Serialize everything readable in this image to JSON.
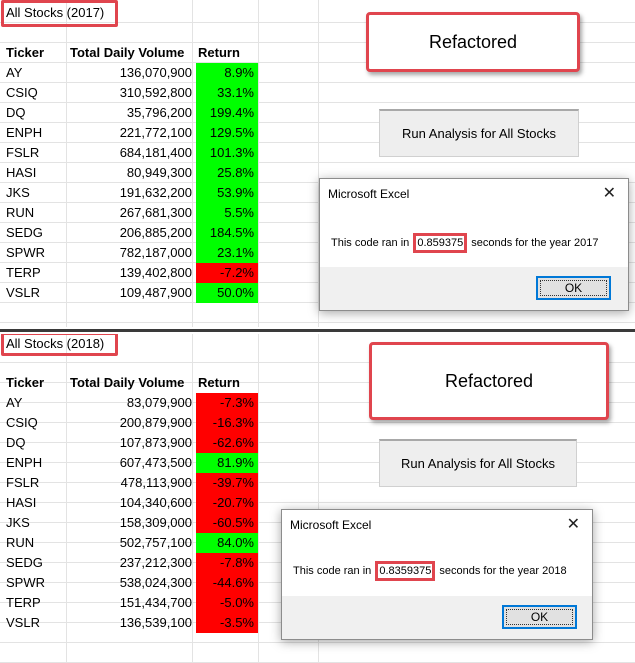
{
  "icons": {
    "close": "close-icon"
  },
  "colors": {
    "positive": "#00ff00",
    "negative": "#ff0000",
    "highlight": "#e0454e"
  },
  "headers": {
    "ticker": "Ticker",
    "volume": "Total Daily Volume",
    "return": "Return"
  },
  "sheet2017": {
    "title": "All Stocks (2017)",
    "refactored_label": "Refactored",
    "run_button": "Run Analysis for All Stocks",
    "rows": [
      {
        "ticker": "AY",
        "volume": "136,070,900",
        "ret": "8.9%",
        "sign": "pos"
      },
      {
        "ticker": "CSIQ",
        "volume": "310,592,800",
        "ret": "33.1%",
        "sign": "pos"
      },
      {
        "ticker": "DQ",
        "volume": "35,796,200",
        "ret": "199.4%",
        "sign": "pos"
      },
      {
        "ticker": "ENPH",
        "volume": "221,772,100",
        "ret": "129.5%",
        "sign": "pos"
      },
      {
        "ticker": "FSLR",
        "volume": "684,181,400",
        "ret": "101.3%",
        "sign": "pos"
      },
      {
        "ticker": "HASI",
        "volume": "80,949,300",
        "ret": "25.8%",
        "sign": "pos"
      },
      {
        "ticker": "JKS",
        "volume": "191,632,200",
        "ret": "53.9%",
        "sign": "pos"
      },
      {
        "ticker": "RUN",
        "volume": "267,681,300",
        "ret": "5.5%",
        "sign": "pos"
      },
      {
        "ticker": "SEDG",
        "volume": "206,885,200",
        "ret": "184.5%",
        "sign": "pos"
      },
      {
        "ticker": "SPWR",
        "volume": "782,187,000",
        "ret": "23.1%",
        "sign": "pos"
      },
      {
        "ticker": "TERP",
        "volume": "139,402,800",
        "ret": "-7.2%",
        "sign": "neg"
      },
      {
        "ticker": "VSLR",
        "volume": "109,487,900",
        "ret": "50.0%",
        "sign": "pos"
      }
    ],
    "dialog": {
      "title": "Microsoft Excel",
      "msg_prefix": "This code ran in ",
      "time": "0.859375",
      "msg_suffix": " seconds for the year 2017",
      "ok": "OK"
    }
  },
  "sheet2018": {
    "title": "All Stocks (2018)",
    "refactored_label": "Refactored",
    "run_button": "Run Analysis for All Stocks",
    "rows": [
      {
        "ticker": "AY",
        "volume": "83,079,900",
        "ret": "-7.3%",
        "sign": "neg"
      },
      {
        "ticker": "CSIQ",
        "volume": "200,879,900",
        "ret": "-16.3%",
        "sign": "neg"
      },
      {
        "ticker": "DQ",
        "volume": "107,873,900",
        "ret": "-62.6%",
        "sign": "neg"
      },
      {
        "ticker": "ENPH",
        "volume": "607,473,500",
        "ret": "81.9%",
        "sign": "pos"
      },
      {
        "ticker": "FSLR",
        "volume": "478,113,900",
        "ret": "-39.7%",
        "sign": "neg"
      },
      {
        "ticker": "HASI",
        "volume": "104,340,600",
        "ret": "-20.7%",
        "sign": "neg"
      },
      {
        "ticker": "JKS",
        "volume": "158,309,000",
        "ret": "-60.5%",
        "sign": "neg"
      },
      {
        "ticker": "RUN",
        "volume": "502,757,100",
        "ret": "84.0%",
        "sign": "pos"
      },
      {
        "ticker": "SEDG",
        "volume": "237,212,300",
        "ret": "-7.8%",
        "sign": "neg"
      },
      {
        "ticker": "SPWR",
        "volume": "538,024,300",
        "ret": "-44.6%",
        "sign": "neg"
      },
      {
        "ticker": "TERP",
        "volume": "151,434,700",
        "ret": "-5.0%",
        "sign": "neg"
      },
      {
        "ticker": "VSLR",
        "volume": "136,539,100",
        "ret": "-3.5%",
        "sign": "neg"
      }
    ],
    "dialog": {
      "title": "Microsoft Excel",
      "msg_prefix": "This code ran in ",
      "time": "0.8359375",
      "msg_suffix": " seconds for the year 2018",
      "ok": "OK"
    }
  }
}
